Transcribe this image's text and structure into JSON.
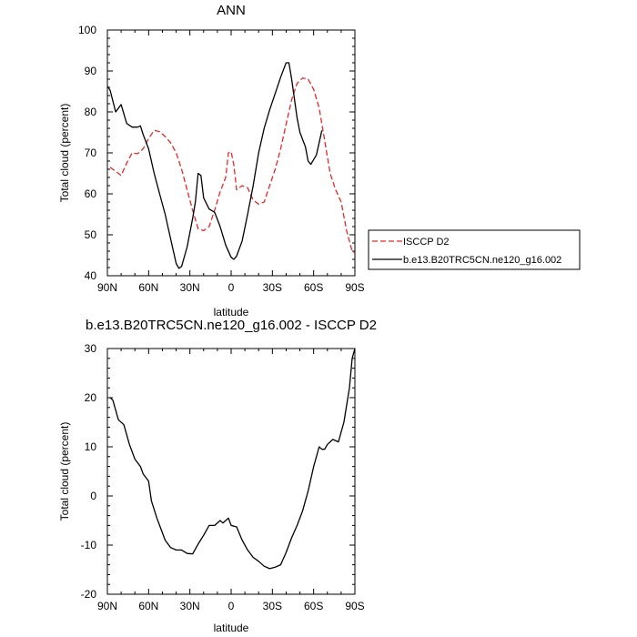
{
  "chart_data": [
    {
      "type": "line",
      "title": "ANN",
      "xlabel": "latitude",
      "ylabel": "Total cloud (percent)",
      "xlim": [
        90,
        -90
      ],
      "ylim": [
        40,
        100
      ],
      "xticks": [
        90,
        60,
        30,
        0,
        -30,
        -60,
        -90
      ],
      "xticklabels": [
        "90N",
        "60N",
        "30N",
        "0",
        "30S",
        "60S",
        "90S"
      ],
      "yticks": [
        40,
        50,
        60,
        70,
        80,
        90,
        100
      ],
      "legend_position": "outside-right",
      "grid": false,
      "series": [
        {
          "name": "ISCCP D2",
          "color": "#e8262a",
          "dash": "dashed",
          "points": [
            [
              88,
              66.5
            ],
            [
              84,
              65.5
            ],
            [
              80,
              64.5
            ],
            [
              76,
              67.5
            ],
            [
              72,
              70
            ],
            [
              68,
              69.8
            ],
            [
              64,
              71
            ],
            [
              60,
              73.5
            ],
            [
              56,
              75.5
            ],
            [
              52,
              75.2
            ],
            [
              48,
              74
            ],
            [
              44,
              72.5
            ],
            [
              40,
              70
            ],
            [
              36,
              66
            ],
            [
              32,
              61
            ],
            [
              28,
              56
            ],
            [
              24,
              51.5
            ],
            [
              20,
              51
            ],
            [
              16,
              52
            ],
            [
              12,
              56
            ],
            [
              8,
              60.5
            ],
            [
              4,
              64
            ],
            [
              2,
              70
            ],
            [
              0,
              70.3
            ],
            [
              -2,
              67
            ],
            [
              -4,
              61
            ],
            [
              -8,
              62
            ],
            [
              -12,
              61.5
            ],
            [
              -16,
              58.5
            ],
            [
              -20,
              57.5
            ],
            [
              -24,
              58
            ],
            [
              -28,
              62
            ],
            [
              -32,
              66
            ],
            [
              -36,
              71
            ],
            [
              -40,
              77
            ],
            [
              -44,
              83
            ],
            [
              -48,
              87
            ],
            [
              -52,
              88.3
            ],
            [
              -56,
              88
            ],
            [
              -60,
              85.5
            ],
            [
              -64,
              81
            ],
            [
              -68,
              73
            ],
            [
              -72,
              65
            ],
            [
              -76,
              61
            ],
            [
              -80,
              58
            ],
            [
              -84,
              51
            ],
            [
              -88,
              46
            ],
            [
              -90,
              45.5
            ]
          ]
        },
        {
          "name": "b.e13.B20TRC5CN.ne120_g16.002",
          "color": "#000000",
          "dash": "solid",
          "points": [
            [
              90,
              86.3
            ],
            [
              88,
              85.3
            ],
            [
              84,
              80
            ],
            [
              80,
              81.8
            ],
            [
              76,
              77.2
            ],
            [
              72,
              76.3
            ],
            [
              68,
              76.3
            ],
            [
              66,
              76.6
            ],
            [
              64,
              74.5
            ],
            [
              60,
              71
            ],
            [
              56,
              65
            ],
            [
              52,
              60
            ],
            [
              48,
              55
            ],
            [
              44,
              49
            ],
            [
              40,
              43
            ],
            [
              38,
              41.8
            ],
            [
              36,
              42.3
            ],
            [
              32,
              47
            ],
            [
              28,
              54
            ],
            [
              26,
              58
            ],
            [
              24,
              65
            ],
            [
              22,
              64.5
            ],
            [
              20,
              59
            ],
            [
              16,
              56.3
            ],
            [
              12,
              55.5
            ],
            [
              8,
              52
            ],
            [
              4,
              47.5
            ],
            [
              0,
              44.5
            ],
            [
              -2,
              44
            ],
            [
              -4,
              44.8
            ],
            [
              -8,
              48.5
            ],
            [
              -12,
              55
            ],
            [
              -16,
              62
            ],
            [
              -20,
              70
            ],
            [
              -24,
              76
            ],
            [
              -28,
              80.5
            ],
            [
              -32,
              84.5
            ],
            [
              -36,
              88.5
            ],
            [
              -40,
              92
            ],
            [
              -42,
              92
            ],
            [
              -44,
              88
            ],
            [
              -48,
              78.5
            ],
            [
              -50,
              75
            ],
            [
              -54,
              71.5
            ],
            [
              -56,
              68
            ],
            [
              -58,
              67.2
            ],
            [
              -62,
              69.5
            ],
            [
              -66,
              75.5
            ]
          ]
        }
      ]
    },
    {
      "type": "line",
      "title": "b.e13.B20TRC5CN.ne120_g16.002 - ISCCP D2",
      "xlabel": "latitude",
      "ylabel": "Total cloud (percent)",
      "xlim": [
        90,
        -90
      ],
      "ylim": [
        -20,
        30
      ],
      "xticks": [
        90,
        60,
        30,
        0,
        -30,
        -60,
        -90
      ],
      "xticklabels": [
        "90N",
        "60N",
        "30N",
        "0",
        "30S",
        "60S",
        "90S"
      ],
      "yticks": [
        -20,
        -10,
        0,
        10,
        20,
        30
      ],
      "grid": false,
      "series": [
        {
          "color": "#000000",
          "dash": "solid",
          "points": [
            [
              88,
              20
            ],
            [
              86,
              19.5
            ],
            [
              82,
              15.5
            ],
            [
              78,
              14.5
            ],
            [
              74,
              10.5
            ],
            [
              70,
              7.5
            ],
            [
              66,
              6
            ],
            [
              64,
              4.5
            ],
            [
              60,
              3
            ],
            [
              58,
              -1
            ],
            [
              54,
              -4.5
            ],
            [
              52,
              -6
            ],
            [
              48,
              -9
            ],
            [
              44,
              -10.5
            ],
            [
              40,
              -11
            ],
            [
              36,
              -11
            ],
            [
              32,
              -11.7
            ],
            [
              28,
              -11.8
            ],
            [
              24,
              -9.8
            ],
            [
              20,
              -8
            ],
            [
              16,
              -6
            ],
            [
              12,
              -6
            ],
            [
              8,
              -5
            ],
            [
              6,
              -5.5
            ],
            [
              4,
              -5
            ],
            [
              2,
              -4.5
            ],
            [
              0,
              -6
            ],
            [
              -4,
              -6.3
            ],
            [
              -8,
              -9
            ],
            [
              -12,
              -11
            ],
            [
              -16,
              -12.5
            ],
            [
              -20,
              -13.3
            ],
            [
              -24,
              -14.3
            ],
            [
              -28,
              -14.8
            ],
            [
              -32,
              -14.5
            ],
            [
              -36,
              -14
            ],
            [
              -40,
              -11.5
            ],
            [
              -44,
              -8.5
            ],
            [
              -48,
              -6
            ],
            [
              -52,
              -3
            ],
            [
              -56,
              1
            ],
            [
              -60,
              6
            ],
            [
              -64,
              10
            ],
            [
              -66,
              9.5
            ],
            [
              -68,
              9.5
            ],
            [
              -70,
              10.5
            ],
            [
              -74,
              11.5
            ],
            [
              -78,
              11
            ],
            [
              -82,
              15
            ],
            [
              -86,
              22
            ],
            [
              -88,
              28
            ],
            [
              -90,
              30
            ]
          ]
        }
      ]
    }
  ]
}
